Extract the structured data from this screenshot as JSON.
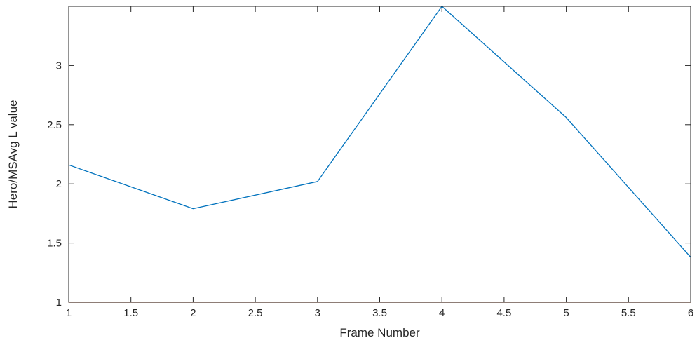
{
  "chart_data": {
    "type": "line",
    "xlabel": "Frame Number",
    "ylabel": "Hero/MSAvg L value",
    "xlim": [
      1,
      6
    ],
    "ylim": [
      1,
      3.5
    ],
    "xticks": [
      "1",
      "1.5",
      "2",
      "2.5",
      "3",
      "3.5",
      "4",
      "4.5",
      "5",
      "5.5",
      "6"
    ],
    "yticks": [
      "1",
      "1.5",
      "2",
      "2.5",
      "3"
    ],
    "grid": false,
    "series": [
      {
        "color": "#0072BD",
        "x": [
          1,
          2,
          3,
          4,
          5,
          6
        ],
        "y": [
          2.16,
          1.79,
          2.02,
          3.5,
          2.56,
          1.38
        ]
      },
      {
        "color": "#D95319",
        "x": [
          1,
          6
        ],
        "y": [
          1,
          1
        ]
      }
    ]
  }
}
